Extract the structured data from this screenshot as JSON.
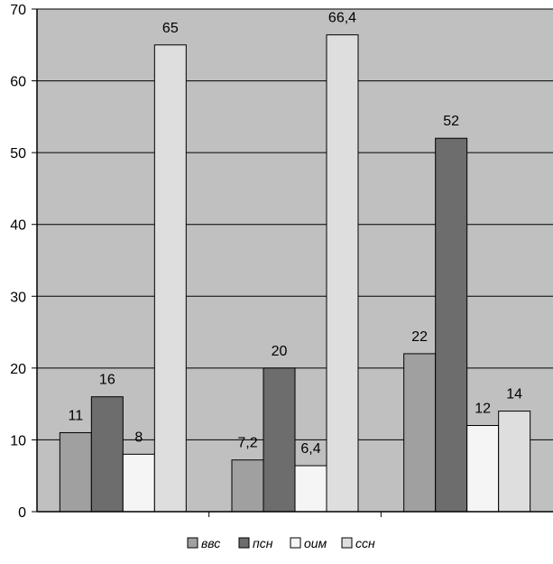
{
  "chart_data": {
    "type": "bar",
    "title": "",
    "xlabel": "",
    "ylabel": "",
    "ylim": [
      0,
      70
    ],
    "yticks": [
      "0",
      "10",
      "20",
      "30",
      "40",
      "50",
      "60",
      "70"
    ],
    "categories": [
      "",
      "",
      ""
    ],
    "grid": true,
    "legend_position": "bottom",
    "background": "#c0c0c0",
    "series": [
      {
        "name": "ввс",
        "color": "#a0a0a0",
        "values": [
          11,
          7.2,
          22
        ],
        "labels": [
          "11",
          "7,2",
          "22"
        ]
      },
      {
        "name": "псн",
        "color": "#6d6d6d",
        "values": [
          16,
          20,
          52
        ],
        "labels": [
          "16",
          "20",
          "52"
        ]
      },
      {
        "name": "оим",
        "color": "#f5f5f5",
        "values": [
          8,
          6.4,
          12
        ],
        "labels": [
          "8",
          "6,4",
          "12"
        ]
      },
      {
        "name": "ссн",
        "color": "#dedede",
        "values": [
          65,
          66.4,
          14
        ],
        "labels": [
          "65",
          "66,4",
          "14"
        ]
      }
    ]
  }
}
